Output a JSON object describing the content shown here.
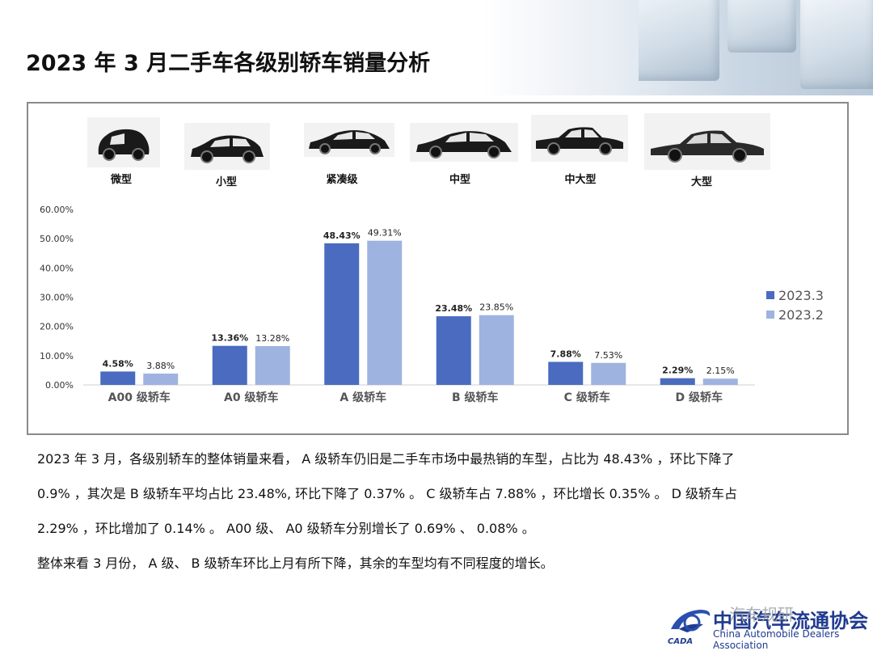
{
  "title": "2023 年 3 月二手车各级别轿车销量分析",
  "car_types": [
    {
      "label": "微型",
      "icon": "micro-car-icon"
    },
    {
      "label": "小型",
      "icon": "small-hatchback-icon"
    },
    {
      "label": "紧凑级",
      "icon": "compact-sedan-icon"
    },
    {
      "label": "中型",
      "icon": "midsize-sedan-icon"
    },
    {
      "label": "中大型",
      "icon": "large-midsize-sedan-icon"
    },
    {
      "label": "大型",
      "icon": "large-sedan-icon"
    }
  ],
  "chart_data": {
    "type": "bar",
    "categories": [
      "A00 级轿车",
      "A0 级轿车",
      "A 级轿车",
      "B 级轿车",
      "C 级轿车",
      "D 级轿车"
    ],
    "series": [
      {
        "name": "2023.3",
        "values": [
          4.58,
          13.36,
          48.43,
          23.48,
          7.88,
          2.29
        ],
        "labels": [
          "4.58%",
          "13.36%",
          "48.43%",
          "23.48%",
          "7.88%",
          "2.29%"
        ],
        "color": "#4a6bbf"
      },
      {
        "name": "2023.2",
        "values": [
          3.88,
          13.28,
          49.31,
          23.85,
          7.53,
          2.15
        ],
        "labels": [
          "3.88%",
          "13.28%",
          "49.31%",
          "23.85%",
          "7.53%",
          "2.15%"
        ],
        "color": "#9fb3e0"
      }
    ],
    "ylim": [
      0,
      60
    ],
    "yticks": [
      "0.00%",
      "10.00%",
      "20.00%",
      "30.00%",
      "40.00%",
      "50.00%",
      "60.00%"
    ],
    "grid": false,
    "legend": "right"
  },
  "paragraphs": [
    "2023 年 3 月，各级别轿车的整体销量来看， A 级轿车仍旧是二手车市场中最热销的车型，占比为 48.43% ，环比下降了",
    "0.9% ，其次是 B 级轿车平均占比 23.48%, 环比下降了 0.37% 。 C 级轿车占 7.88% ，环比增长 0.35% 。 D 级轿车占",
    "2.29% ，环比增加了 0.14% 。 A00 级、 A0 级轿车分别增长了 0.69% 、 0.08% 。",
    "整体来看 3 月份， A 级、 B 级轿车环比上月有所下降，其余的车型均有不同程度的增长。"
  ],
  "footer": {
    "watermark": "汽车规研",
    "org_cn": "中国汽车流通协会",
    "org_en": "China Automobile Dealers Association",
    "logo_text": "CADA"
  }
}
